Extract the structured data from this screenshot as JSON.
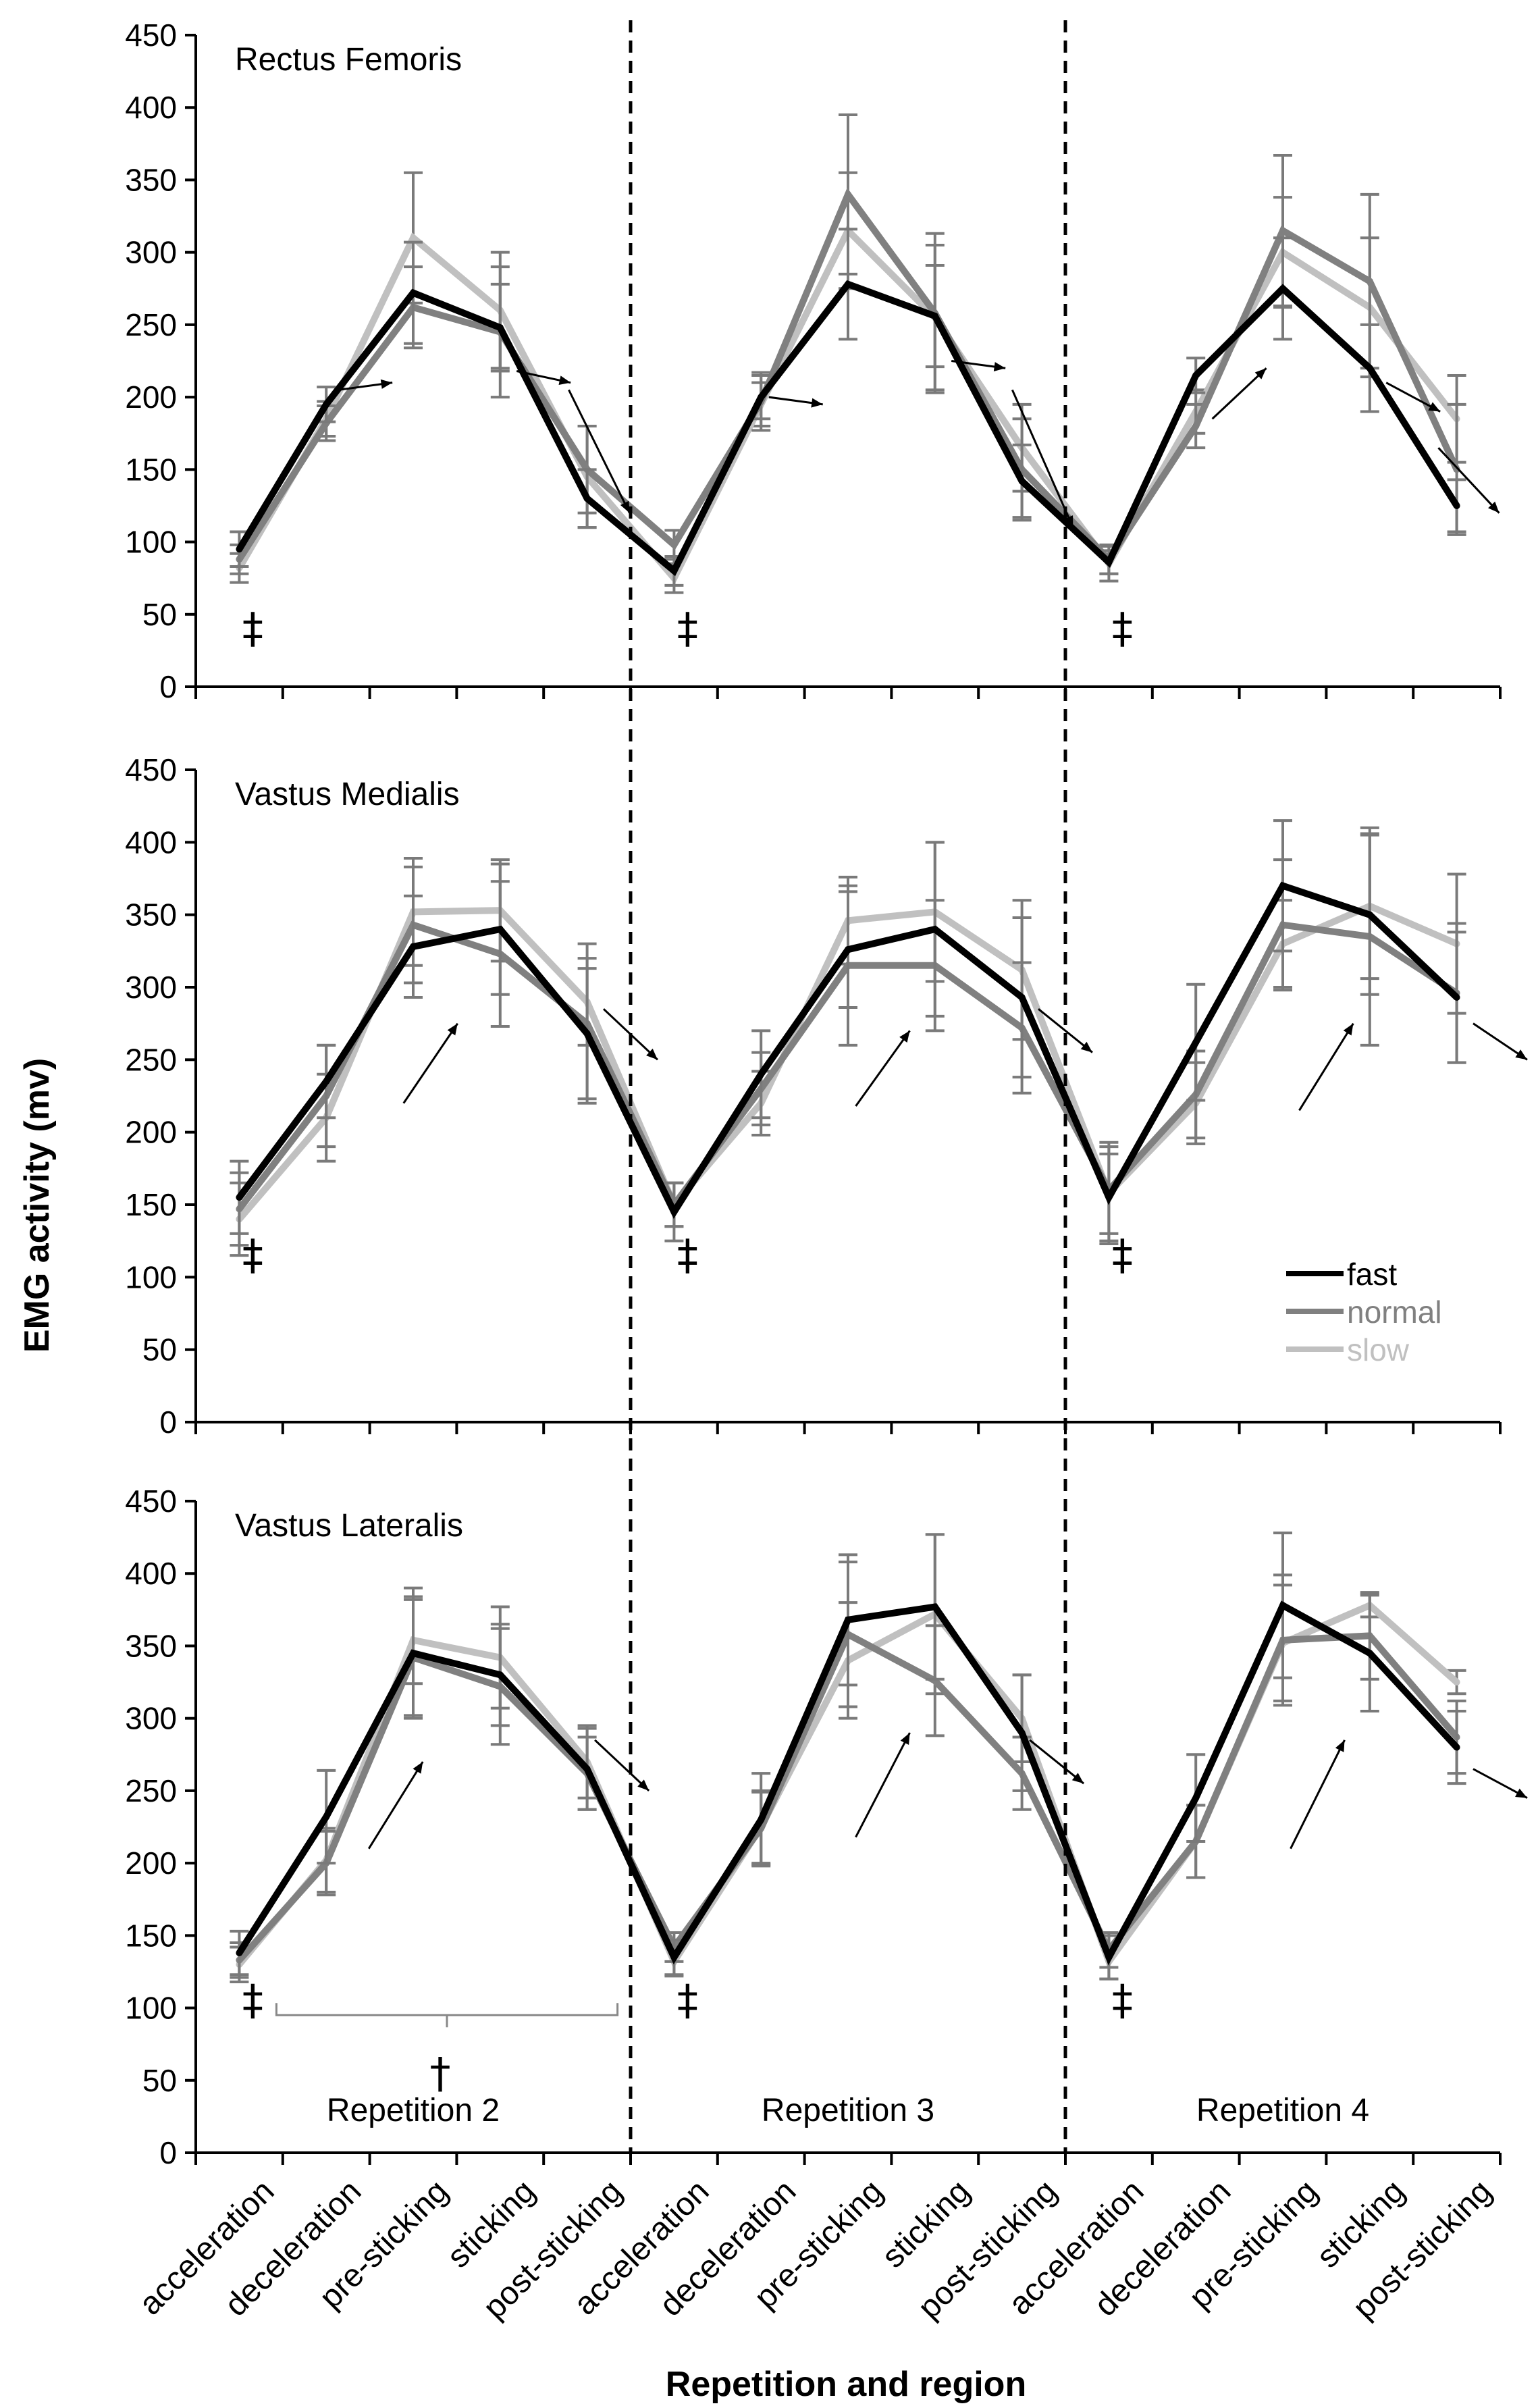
{
  "chart_data": {
    "type": "line",
    "ylabel": "EMG activity (mv)",
    "xlabel": "Repetition and region",
    "ylim": [
      0,
      450
    ],
    "yticks": [
      "0",
      "50",
      "100",
      "150",
      "200",
      "250",
      "300",
      "350",
      "400",
      "450"
    ],
    "categories": [
      "acceleration",
      "deceleration",
      "pre-sticking",
      "sticking",
      "post-sticking",
      "acceleration",
      "deceleration",
      "pre-sticking",
      "sticking",
      "post-sticking",
      "acceleration",
      "deceleration",
      "pre-sticking",
      "sticking",
      "post-sticking"
    ],
    "repetitions": [
      "Repetition 2",
      "Repetition 3",
      "Repetition 4"
    ],
    "legend": [
      {
        "name": "fast",
        "color": "#000000"
      },
      {
        "name": "normal",
        "color": "#808080"
      },
      {
        "name": "slow",
        "color": "#c0c0c0"
      }
    ],
    "marks": {
      "double_dagger": "‡",
      "dagger": "†"
    },
    "panels": [
      {
        "title": "Rectus Femoris",
        "series": [
          {
            "name": "fast",
            "values": [
              95,
              195,
              272,
              248,
              130,
              80,
              200,
              278,
              256,
              142,
              86,
              215,
              275,
              220,
              125
            ],
            "errors": [
              12,
              12,
              35,
              30,
              20,
              10,
              15,
              38,
              35,
              25,
              8,
              12,
              35,
              30,
              18
            ]
          },
          {
            "name": "normal",
            "values": [
              88,
              182,
              262,
              245,
              150,
              98,
              197,
              340,
              258,
              150,
              88,
              180,
              315,
              280,
              150
            ],
            "errors": [
              10,
              12,
              28,
              45,
              30,
              10,
              20,
              55,
              55,
              35,
              10,
              15,
              52,
              60,
              45
            ]
          },
          {
            "name": "slow",
            "values": [
              82,
              185,
              310,
              260,
              145,
              75,
              195,
              315,
              255,
              165,
              85,
              190,
              300,
              262,
              185
            ],
            "errors": [
              10,
              12,
              45,
              40,
              35,
              10,
              15,
              40,
              50,
              30,
              12,
              15,
              38,
              48,
              30
            ]
          }
        ],
        "marks": [
          {
            "text": "‡",
            "slot": 0
          },
          {
            "text": "‡",
            "slot": 5
          },
          {
            "text": "‡",
            "slot": 10
          }
        ]
      },
      {
        "title": "Vastus Medialis",
        "series": [
          {
            "name": "fast",
            "values": [
              155,
              235,
              328,
              340,
              268,
              145,
              240,
              326,
              340,
              293,
              155,
              262,
              370,
              350,
              293
            ],
            "errors": [
              25,
              25,
              35,
              45,
              45,
              20,
              30,
              40,
              60,
              55,
              30,
              40,
              45,
              55,
              45
            ]
          },
          {
            "name": "normal",
            "values": [
              147,
              225,
              343,
              323,
              275,
              150,
              230,
              315,
              315,
              272,
              160,
              226,
              343,
              335,
              296
            ],
            "errors": [
              25,
              35,
              40,
              50,
              55,
              15,
              25,
              55,
              45,
              45,
              30,
              30,
              45,
              75,
              48
            ]
          },
          {
            "name": "slow",
            "values": [
              140,
              210,
              352,
              353,
              290,
              150,
              220,
              346,
              352,
              312,
              158,
              220,
              330,
              356,
              330
            ],
            "errors": [
              25,
              30,
              37,
              35,
              30,
              15,
              22,
              30,
              48,
              48,
              35,
              28,
              30,
              50,
              48
            ]
          }
        ],
        "marks": [
          {
            "text": "‡",
            "slot": 0
          },
          {
            "text": "‡",
            "slot": 5
          },
          {
            "text": "‡",
            "slot": 10
          }
        ]
      },
      {
        "title": "Vastus Lateralis",
        "series": [
          {
            "name": "fast",
            "values": [
              138,
              232,
              345,
              330,
              265,
              135,
              230,
              368,
              377,
              290,
              135,
              245,
              378,
              345,
              280
            ],
            "errors": [
              15,
              32,
              45,
              35,
              28,
              12,
              32,
              45,
              50,
              40,
              15,
              30,
              50,
              40,
              25
            ]
          },
          {
            "name": "normal",
            "values": [
              133,
              200,
              342,
              322,
              262,
              142,
              224,
              358,
              326,
              262,
              140,
              215,
              354,
              357,
              287
            ],
            "errors": [
              12,
              22,
              40,
              40,
              25,
              10,
              25,
              50,
              38,
              25,
              12,
              25,
              45,
              30,
              25
            ]
          },
          {
            "name": "slow",
            "values": [
              130,
              202,
              354,
              342,
              270,
              132,
              225,
              340,
              372,
              300,
              132,
              215,
              352,
              378,
              325
            ],
            "errors": [
              12,
              22,
              30,
              35,
              25,
              10,
              25,
              40,
              55,
              30,
              12,
              25,
              40,
              8,
              8
            ]
          }
        ],
        "marks": [
          {
            "text": "‡",
            "slot": 0
          },
          {
            "text": "‡",
            "slot": 5
          },
          {
            "text": "‡",
            "slot": 10
          }
        ],
        "bracket": {
          "text": "†"
        }
      }
    ]
  }
}
